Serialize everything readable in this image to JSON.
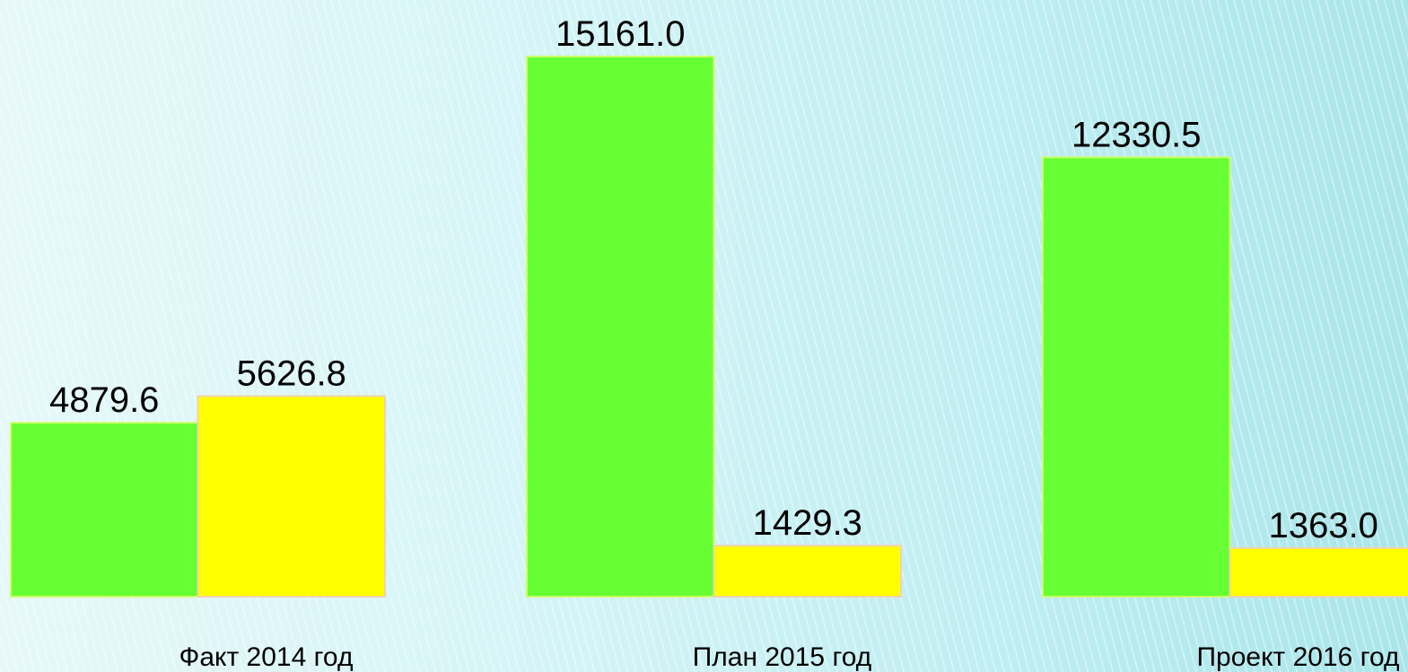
{
  "chart_data": {
    "type": "bar",
    "categories": [
      "Факт 2014 год",
      "План 2015 год",
      "Проект 2016 год"
    ],
    "series": [
      {
        "color": "#66ff33",
        "values": [
          4879.6,
          15161,
          12330.5
        ],
        "value_labels": [
          "4879.6",
          "15161.0",
          "12330.5"
        ]
      },
      {
        "color": "#ffff00",
        "values": [
          5626.8,
          1429.3,
          1363
        ],
        "value_labels": [
          "5626.8",
          "1429.3",
          "1363.0"
        ]
      }
    ]
  }
}
